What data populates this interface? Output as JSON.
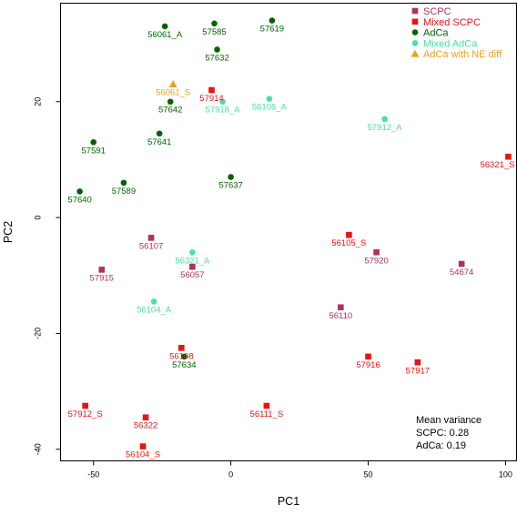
{
  "chart_data": {
    "type": "scatter",
    "xlabel": "PC1",
    "ylabel": "PC2",
    "xlim": [
      -62,
      104
    ],
    "ylim": [
      -42,
      37
    ],
    "xticks": [
      -50,
      0,
      50,
      100
    ],
    "yticks": [
      -40,
      -20,
      0,
      20
    ],
    "legend_position": "top-right",
    "series": [
      {
        "name": "SCPC",
        "color": "#b03060",
        "marker": "square",
        "points": [
          {
            "x": -47,
            "y": -9,
            "label": "57915"
          },
          {
            "x": -29,
            "y": -3.5,
            "label": "56107"
          },
          {
            "x": -14,
            "y": -8.5,
            "label": "56057"
          },
          {
            "x": 40,
            "y": -15.5,
            "label": "56110"
          },
          {
            "x": 53,
            "y": -6,
            "label": "57920"
          },
          {
            "x": 84,
            "y": -8,
            "label": "54674"
          }
        ]
      },
      {
        "name": "Mixed SCPC",
        "color": "#ee1111",
        "marker": "square",
        "points": [
          {
            "x": -7,
            "y": 22,
            "label": "57914"
          },
          {
            "x": 101,
            "y": 10.5,
            "label": "56321_S"
          },
          {
            "x": 43,
            "y": -3,
            "label": "56105_S"
          },
          {
            "x": -18,
            "y": -22.5,
            "label": "56108"
          },
          {
            "x": 50,
            "y": -24,
            "label": "57916"
          },
          {
            "x": 68,
            "y": -25,
            "label": "57917"
          },
          {
            "x": -53,
            "y": -32.5,
            "label": "57912_S"
          },
          {
            "x": -31,
            "y": -34.5,
            "label": "56322"
          },
          {
            "x": 13,
            "y": -32.5,
            "label": "56111_S"
          },
          {
            "x": -32,
            "y": -39.5,
            "label": "56104_S"
          }
        ]
      },
      {
        "name": "AdCa",
        "color": "#006400",
        "marker": "circle",
        "points": [
          {
            "x": -24,
            "y": 33,
            "label": "56061_A"
          },
          {
            "x": -6,
            "y": 33.5,
            "label": "57585"
          },
          {
            "x": 15,
            "y": 34,
            "label": "57619"
          },
          {
            "x": -5,
            "y": 29,
            "label": "57632"
          },
          {
            "x": -22,
            "y": 20,
            "label": "57642"
          },
          {
            "x": -26,
            "y": 14.5,
            "label": "57641"
          },
          {
            "x": -50,
            "y": 13,
            "label": "57591"
          },
          {
            "x": -39,
            "y": 6,
            "label": "57589"
          },
          {
            "x": -55,
            "y": 4.5,
            "label": "57640"
          },
          {
            "x": 0,
            "y": 7,
            "label": "57637"
          },
          {
            "x": -17,
            "y": -24,
            "label": "57634"
          }
        ]
      },
      {
        "name": "Mixed AdCa",
        "color": "#48e29a",
        "marker": "circle",
        "points": [
          {
            "x": -3,
            "y": 20,
            "label": "57918_A"
          },
          {
            "x": 14,
            "y": 20.5,
            "label": "56105_A"
          },
          {
            "x": 56,
            "y": 17,
            "label": "57912_A"
          },
          {
            "x": -14,
            "y": -6,
            "label": "56321_A"
          },
          {
            "x": -28,
            "y": -14.5,
            "label": "56104_A"
          }
        ]
      },
      {
        "name": "AdCa with NE diff",
        "color": "#f0a020",
        "marker": "triangle",
        "points": [
          {
            "x": -21,
            "y": 23,
            "label": "56061_S"
          }
        ]
      }
    ],
    "annotations": [
      "Mean variance",
      "SCPC: 0.28",
      "AdCa: 0.19"
    ]
  }
}
